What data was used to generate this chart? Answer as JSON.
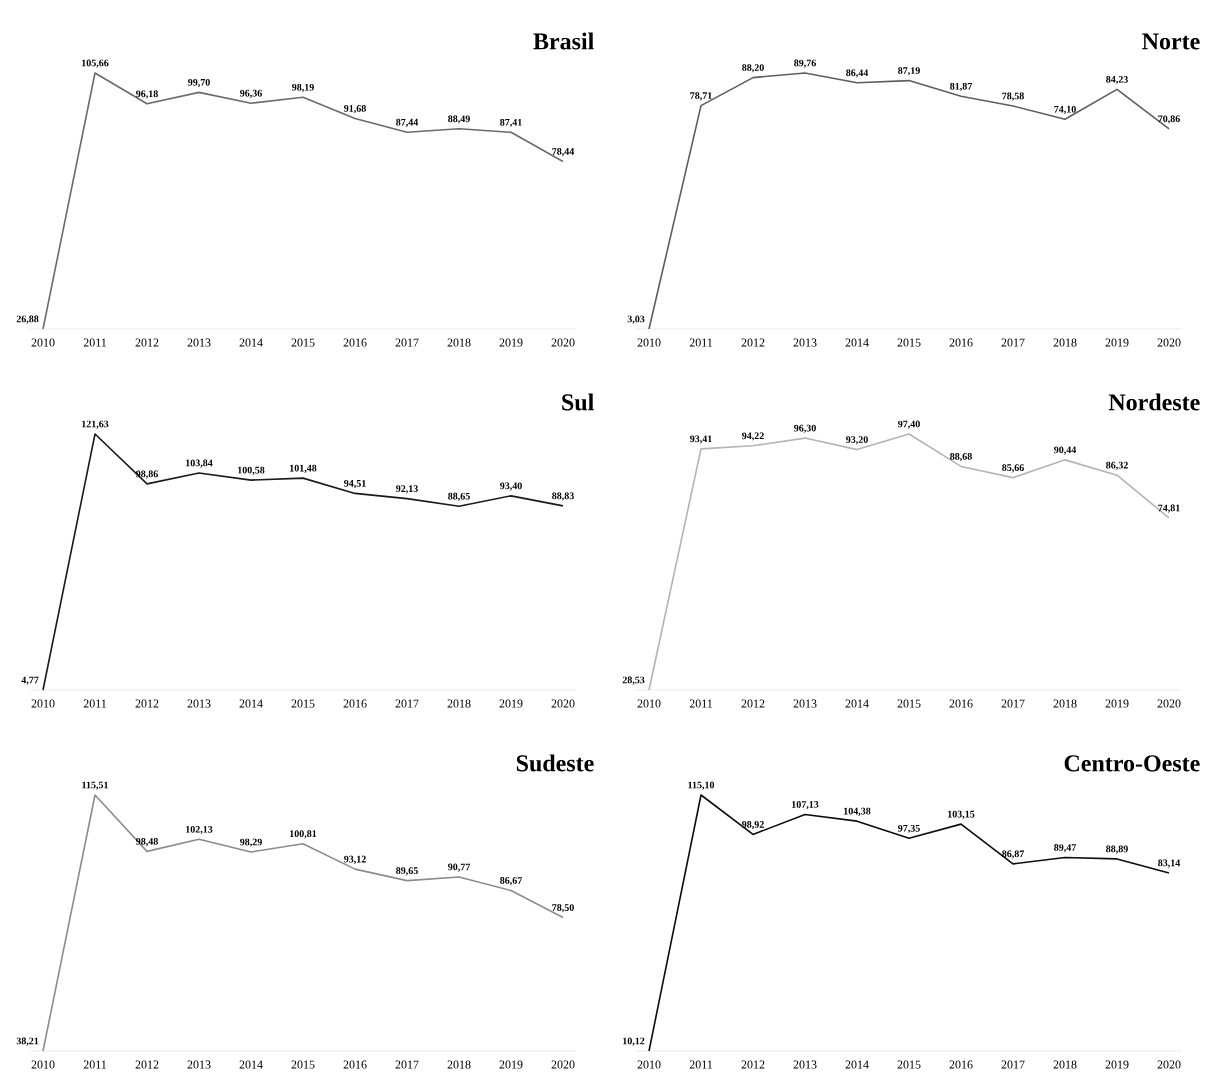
{
  "chart_data": [
    {
      "type": "line",
      "title": "Brasil",
      "categories": [
        "2010",
        "2011",
        "2012",
        "2013",
        "2014",
        "2015",
        "2016",
        "2017",
        "2018",
        "2019",
        "2020"
      ],
      "values": [
        26.88,
        105.66,
        96.18,
        99.7,
        96.36,
        98.19,
        91.68,
        87.44,
        88.49,
        87.41,
        78.44
      ],
      "color": "#6b6b6b",
      "value_labels": [
        "26,88",
        "105,66",
        "96,18",
        "99,70",
        "96,36",
        "98,19",
        "91,68",
        "87,44",
        "88,49",
        "87,41",
        "78,44"
      ]
    },
    {
      "type": "line",
      "title": "Norte",
      "categories": [
        "2010",
        "2011",
        "2012",
        "2013",
        "2014",
        "2015",
        "2016",
        "2017",
        "2018",
        "2019",
        "2020"
      ],
      "values": [
        3.03,
        78.71,
        88.2,
        89.76,
        86.44,
        87.19,
        81.87,
        78.58,
        74.1,
        84.23,
        70.86
      ],
      "color": "#5e5e5e",
      "value_labels": [
        "3,03",
        "78,71",
        "88,20",
        "89,76",
        "86,44",
        "87,19",
        "81,87",
        "78,58",
        "74,10",
        "84,23",
        "70,86"
      ]
    },
    {
      "type": "line",
      "title": "Sul",
      "categories": [
        "2010",
        "2011",
        "2012",
        "2013",
        "2014",
        "2015",
        "2016",
        "2017",
        "2018",
        "2019",
        "2020"
      ],
      "values": [
        4.77,
        121.63,
        98.86,
        103.84,
        100.58,
        101.48,
        94.51,
        92.13,
        88.65,
        93.4,
        88.83
      ],
      "color": "#1a1a1a",
      "value_labels": [
        "4,77",
        "121,63",
        "98,86",
        "103,84",
        "100,58",
        "101,48",
        "94,51",
        "92,13",
        "88,65",
        "93,40",
        "88,83"
      ]
    },
    {
      "type": "line",
      "title": "Nordeste",
      "categories": [
        "2010",
        "2011",
        "2012",
        "2013",
        "2014",
        "2015",
        "2016",
        "2017",
        "2018",
        "2019",
        "2020"
      ],
      "values": [
        28.53,
        93.41,
        94.22,
        96.3,
        93.2,
        97.4,
        88.68,
        85.66,
        90.44,
        86.32,
        74.81
      ],
      "color": "#b4b4b4",
      "value_labels": [
        "28,53",
        "93,41",
        "94,22",
        "96,30",
        "93,20",
        "97,40",
        "88,68",
        "85,66",
        "90,44",
        "86,32",
        "74,81"
      ]
    },
    {
      "type": "line",
      "title": "Sudeste",
      "categories": [
        "2010",
        "2011",
        "2012",
        "2013",
        "2014",
        "2015",
        "2016",
        "2017",
        "2018",
        "2019",
        "2020"
      ],
      "values": [
        38.21,
        115.51,
        98.48,
        102.13,
        98.29,
        100.81,
        93.12,
        89.65,
        90.77,
        86.67,
        78.5
      ],
      "color": "#8c8c8c",
      "value_labels": [
        "38,21",
        "115,51",
        "98,48",
        "102,13",
        "98,29",
        "100,81",
        "93,12",
        "89,65",
        "90,77",
        "86,67",
        "78,50"
      ]
    },
    {
      "type": "line",
      "title": "Centro-Oeste",
      "categories": [
        "2010",
        "2011",
        "2012",
        "2013",
        "2014",
        "2015",
        "2016",
        "2017",
        "2018",
        "2019",
        "2020"
      ],
      "values": [
        10.12,
        115.1,
        98.92,
        107.13,
        104.38,
        97.35,
        103.15,
        86.87,
        89.47,
        88.89,
        83.14
      ],
      "color": "#0d0d0d",
      "value_labels": [
        "10,12",
        "115,10",
        "98,92",
        "107,13",
        "104,38",
        "97,35",
        "103,15",
        "86,87",
        "89,47",
        "88,89",
        "83,14"
      ]
    }
  ]
}
